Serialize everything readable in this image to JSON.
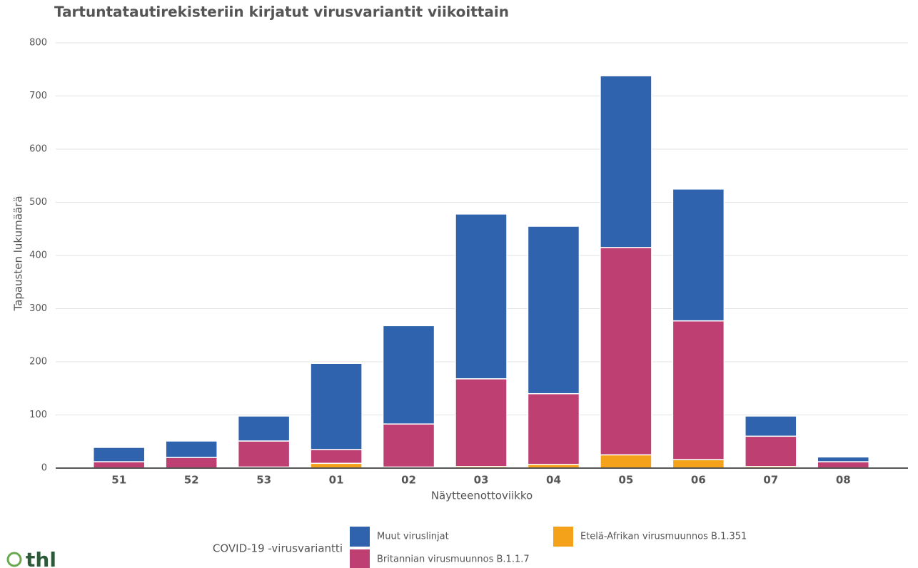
{
  "chart_data": {
    "type": "stacked_bar",
    "title": "Tartuntatautirekisteriin kirjatut virusvariantit viikoittain",
    "x_label": "Näytteenottoviikko",
    "y_label": "Tapausten lukumäärä",
    "legend_title": "COVID-19 -virusvariantti",
    "logo": "thl",
    "categories": [
      "51",
      "52",
      "53",
      "01",
      "02",
      "03",
      "04",
      "05",
      "06",
      "07",
      "08"
    ],
    "series": [
      {
        "name": "Etelä-Afrikan virusmuunnos B.1.351",
        "color": "#f5a21b",
        "values": [
          0,
          0,
          2,
          9,
          2,
          3,
          7,
          25,
          16,
          3,
          0
        ]
      },
      {
        "name": "Britannian virusmuunnos B.1.1.7",
        "color": "#be3f72",
        "values": [
          12,
          20,
          49,
          26,
          81,
          165,
          133,
          390,
          261,
          57,
          12
        ]
      },
      {
        "name": "Muut viruslinjat",
        "color": "#2f63ad",
        "values": [
          27,
          31,
          47,
          162,
          185,
          310,
          315,
          323,
          248,
          38,
          9
        ]
      }
    ],
    "ylim": [
      0,
      800
    ],
    "yticks": [
      0,
      100,
      200,
      300,
      400,
      500,
      600,
      700,
      800
    ],
    "grid": true
  }
}
